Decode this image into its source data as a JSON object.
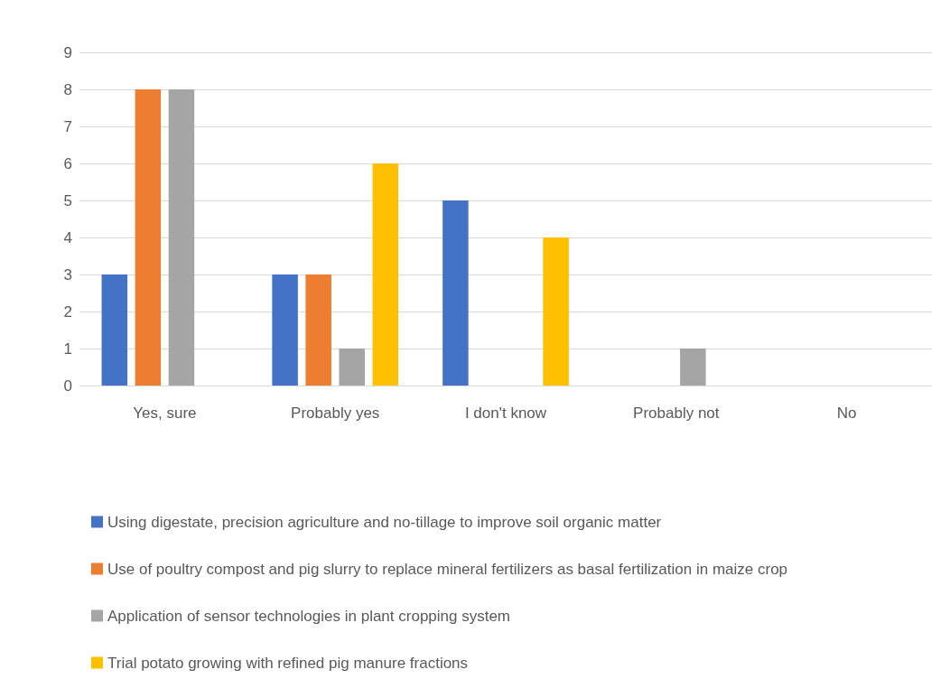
{
  "chart_data": {
    "type": "bar",
    "categories": [
      "Yes, sure",
      "Probably yes",
      "I don't know",
      "Probably not",
      "No"
    ],
    "series": [
      {
        "name": "Using digestate, precision agriculture and no-tillage to improve soil organic matter",
        "color": "#4472c4",
        "values": [
          3,
          3,
          5,
          0,
          0
        ]
      },
      {
        "name": "Use of poultry compost and pig slurry to replace mineral fertilizers as basal fertilization in maize crop",
        "color": "#ed7d31",
        "values": [
          8,
          3,
          0,
          0,
          0
        ]
      },
      {
        "name": "Application of sensor technologies in plant cropping system",
        "color": "#a5a5a5",
        "values": [
          8,
          1,
          0,
          1,
          0
        ]
      },
      {
        "name": "Trial potato growing with refined pig manure fractions",
        "color": "#ffc000",
        "values": [
          0,
          6,
          4,
          0,
          0
        ]
      }
    ],
    "ylim": [
      0,
      9
    ],
    "yticks": [
      0,
      1,
      2,
      3,
      4,
      5,
      6,
      7,
      8,
      9
    ],
    "grid": "y",
    "legend": "bottom"
  }
}
